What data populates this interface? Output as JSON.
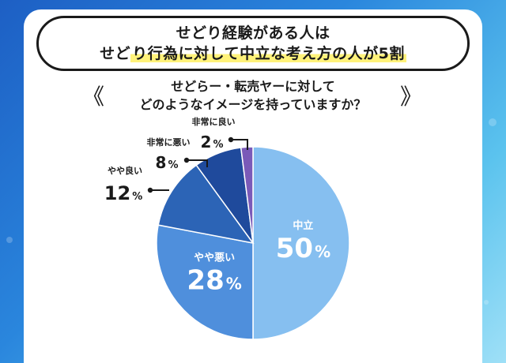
{
  "title": {
    "line1": "せどり経験がある人は",
    "line2_prefix": "せど",
    "line2_highlight": "り行為に対して中立な考え方の人が5割"
  },
  "question": {
    "line1": "せどらー・転売ヤーに対して",
    "line2": "どのようなイメージを持っていますか？"
  },
  "decor": {
    "left_glyph": "《",
    "right_glyph": "》"
  },
  "chart_data": {
    "type": "pie",
    "unit": "%",
    "slices": [
      {
        "label": "中立",
        "value": 50,
        "color": "#86bff0"
      },
      {
        "label": "やや悪い",
        "value": 28,
        "color": "#4f8fdc"
      },
      {
        "label": "やや良い",
        "value": 12,
        "color": "#2c64b6"
      },
      {
        "label": "非常に悪い",
        "value": 8,
        "color": "#1f4a9c"
      },
      {
        "label": "非常に良い",
        "value": 2,
        "color": "#7a5ab8"
      }
    ]
  }
}
